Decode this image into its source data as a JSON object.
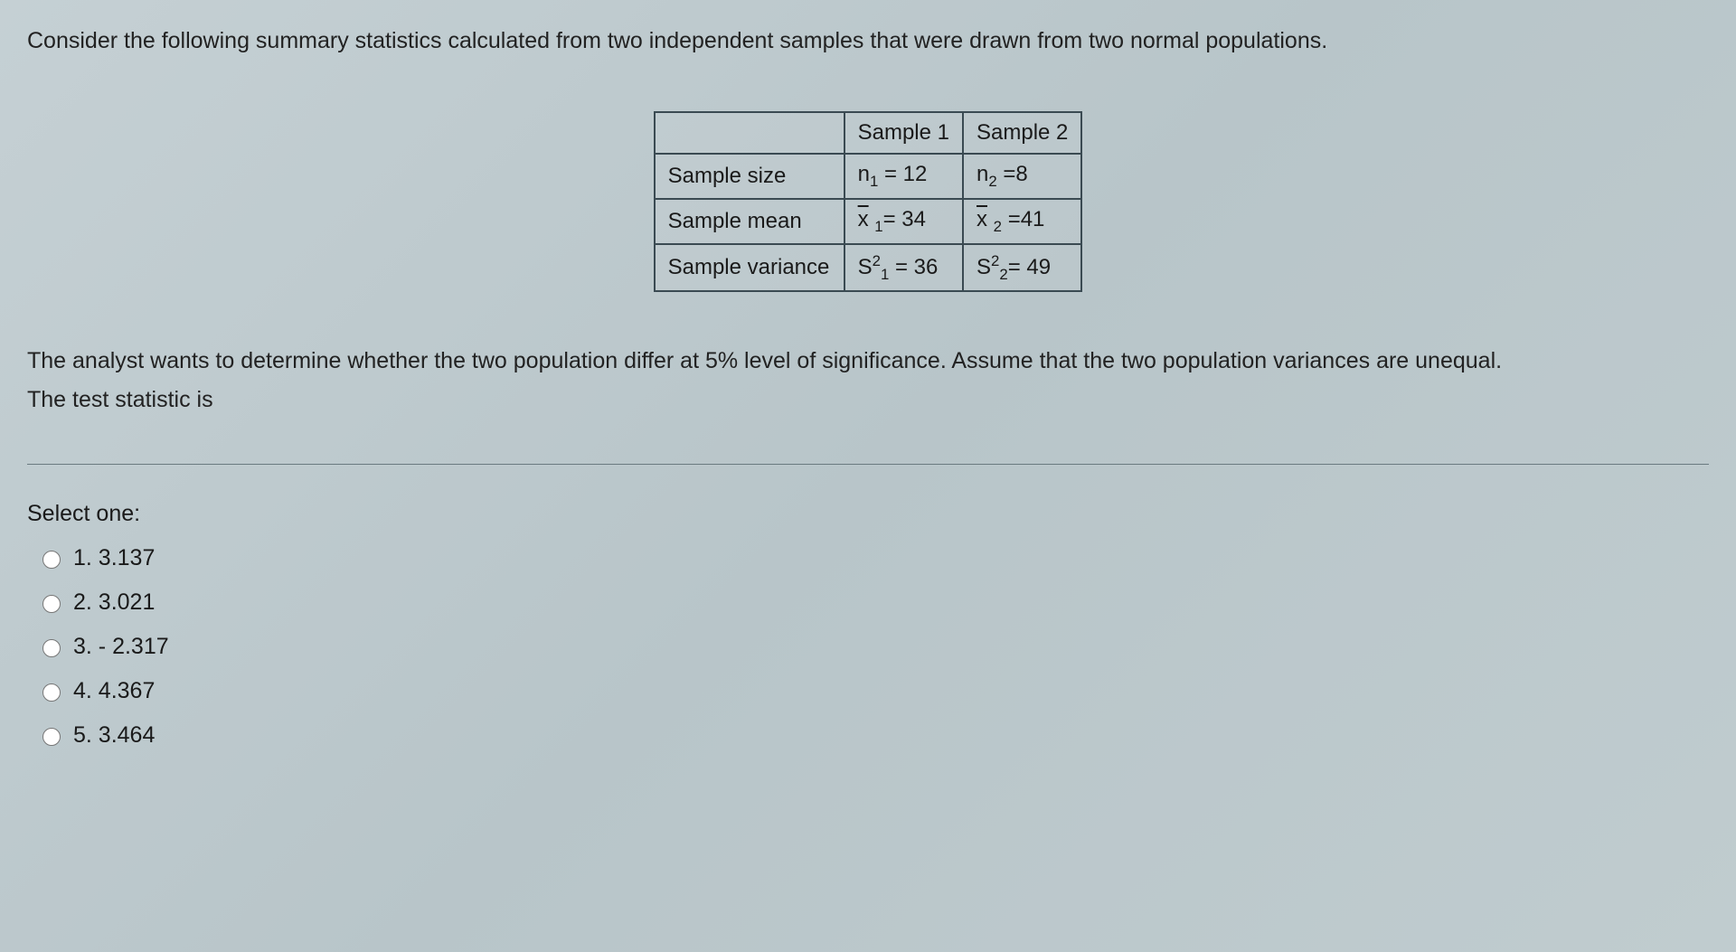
{
  "question": {
    "intro": "Consider the following summary statistics calculated from two independent samples that were drawn from two normal populations.",
    "followup_line1": "The analyst wants to determine whether the two population differ at 5% level of significance. Assume that the two population variances are unequal.",
    "followup_line2": "The test statistic is"
  },
  "table": {
    "header_blank": "",
    "header_s1": "Sample 1",
    "header_s2": "Sample 2",
    "rows": {
      "size": {
        "label": "Sample size",
        "s1": "= 12",
        "s2": "=8",
        "sym1_pre": "n",
        "sym1_sub": "1",
        "sym2_pre": "n",
        "sym2_sub": "2"
      },
      "mean": {
        "label": "Sample mean",
        "s1": "= 34",
        "s2": "=41",
        "sym1_pre": "x",
        "sym1_sub": "1",
        "sym2_pre": "x",
        "sym2_sub": "2"
      },
      "var": {
        "label": "Sample variance",
        "s1": "= 36",
        "s2": "= 49",
        "sym1_pre": "S",
        "sym1_sup": "2",
        "sym1_sub": "1",
        "sym2_pre": "S",
        "sym2_sup": "2",
        "sym2_sub": "2"
      }
    }
  },
  "select_label": "Select one:",
  "options": {
    "o1": "1. 3.137",
    "o2": "2. 3.021",
    "o3": "3. - 2.317",
    "o4": "4. 4.367",
    "o5": "5. 3.464"
  },
  "style": {
    "bg_grad_from": "#c5d0d4",
    "bg_grad_to": "#c0cccf",
    "border_color": "#3a4a52",
    "text_color": "#1a1a1a",
    "font_size_body": 25,
    "font_size_table": 24
  }
}
